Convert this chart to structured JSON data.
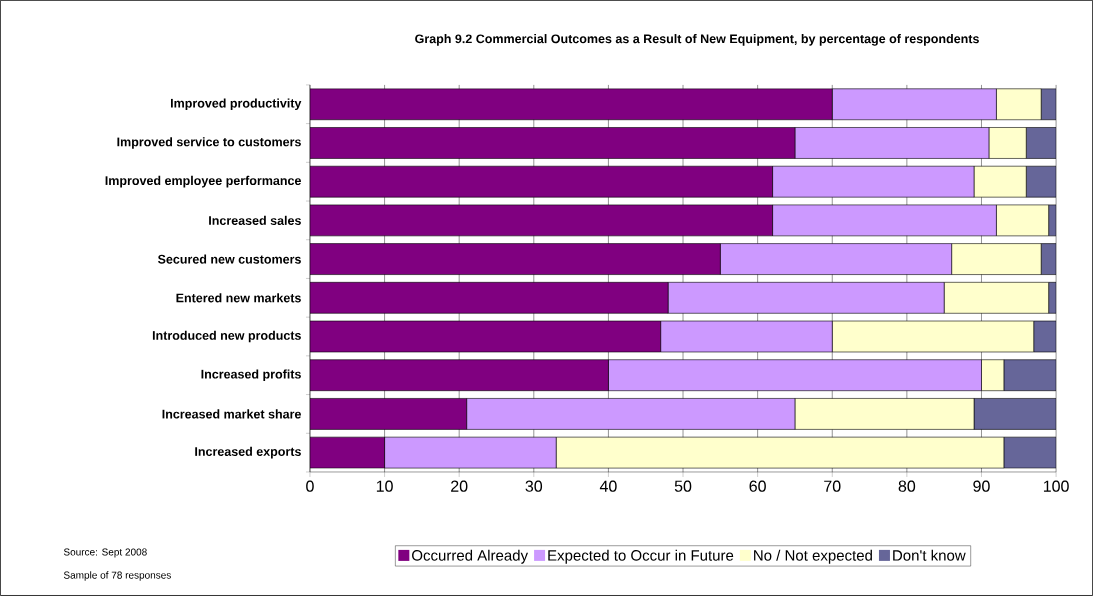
{
  "chart_data": {
    "type": "bar",
    "orientation": "horizontal",
    "stacked": true,
    "title": "Graph 9.2 Commercial Outcomes as a Result of New Equipment, by percentage of respondents",
    "categories": [
      "Improved productivity",
      "Improved service to customers",
      "Improved employee performance",
      "Increased sales",
      "Secured new customers",
      "Entered new markets",
      "Introduced new products",
      "Increased profits",
      "Increased market share",
      "Increased exports"
    ],
    "series": [
      {
        "name": "Occurred Already",
        "color": "#800080",
        "values": [
          70,
          65,
          62,
          62,
          55,
          48,
          47,
          40,
          21,
          10
        ]
      },
      {
        "name": "Expected to Occur in Future",
        "color": "#cc99ff",
        "values": [
          22,
          26,
          27,
          30,
          31,
          37,
          23,
          50,
          44,
          23
        ]
      },
      {
        "name": "No / Not expected",
        "color": "#ffffcc",
        "values": [
          6,
          5,
          7,
          7,
          12,
          14,
          27,
          3,
          24,
          60
        ]
      },
      {
        "name": "Don't know",
        "color": "#666699",
        "values": [
          2,
          4,
          4,
          1,
          2,
          1,
          3,
          7,
          11,
          7
        ]
      }
    ],
    "xlim": [
      0,
      100
    ],
    "xticks": [
      0,
      10,
      20,
      30,
      40,
      50,
      60,
      70,
      80,
      90,
      100
    ],
    "grid": "x",
    "legend": "bottom",
    "annotations": [
      "Source: Sept 2008",
      "Sample of 78 responses"
    ]
  }
}
